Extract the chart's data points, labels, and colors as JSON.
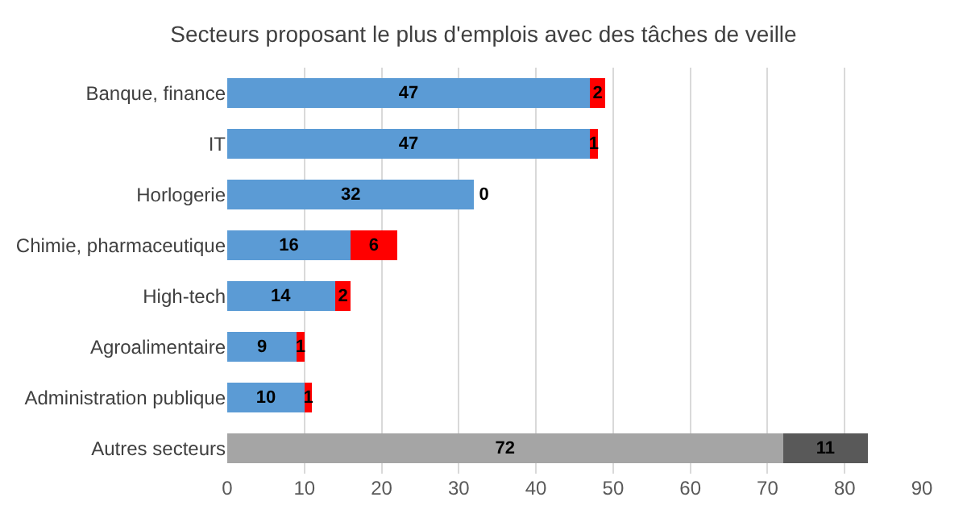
{
  "chart_data": {
    "type": "bar",
    "title": "Secteurs proposant le plus d'emplois avec des tâches de veille",
    "orientation": "horizontal",
    "stacked": true,
    "categories": [
      "Banque, finance",
      "IT",
      "Horlogerie",
      "Chimie, pharmaceutique",
      "High-tech",
      "Agroalimentaire",
      "Administration publique",
      "Autres secteurs"
    ],
    "series": [
      {
        "colors": [
          "#5b9bd5",
          "#5b9bd5",
          "#5b9bd5",
          "#5b9bd5",
          "#5b9bd5",
          "#5b9bd5",
          "#5b9bd5",
          "#a5a5a5"
        ],
        "values": [
          47,
          47,
          32,
          16,
          14,
          9,
          10,
          72
        ]
      },
      {
        "colors": [
          "#ff0000",
          "#ff0000",
          "#ff0000",
          "#ff0000",
          "#ff0000",
          "#ff0000",
          "#ff0000",
          "#595959"
        ],
        "values": [
          2,
          1,
          0,
          6,
          2,
          1,
          1,
          11
        ]
      }
    ],
    "xlim": [
      0,
      90
    ],
    "xticks": [
      0,
      10,
      20,
      30,
      40,
      50,
      60,
      70,
      80,
      90
    ],
    "grid": "x",
    "data_labels": true
  }
}
